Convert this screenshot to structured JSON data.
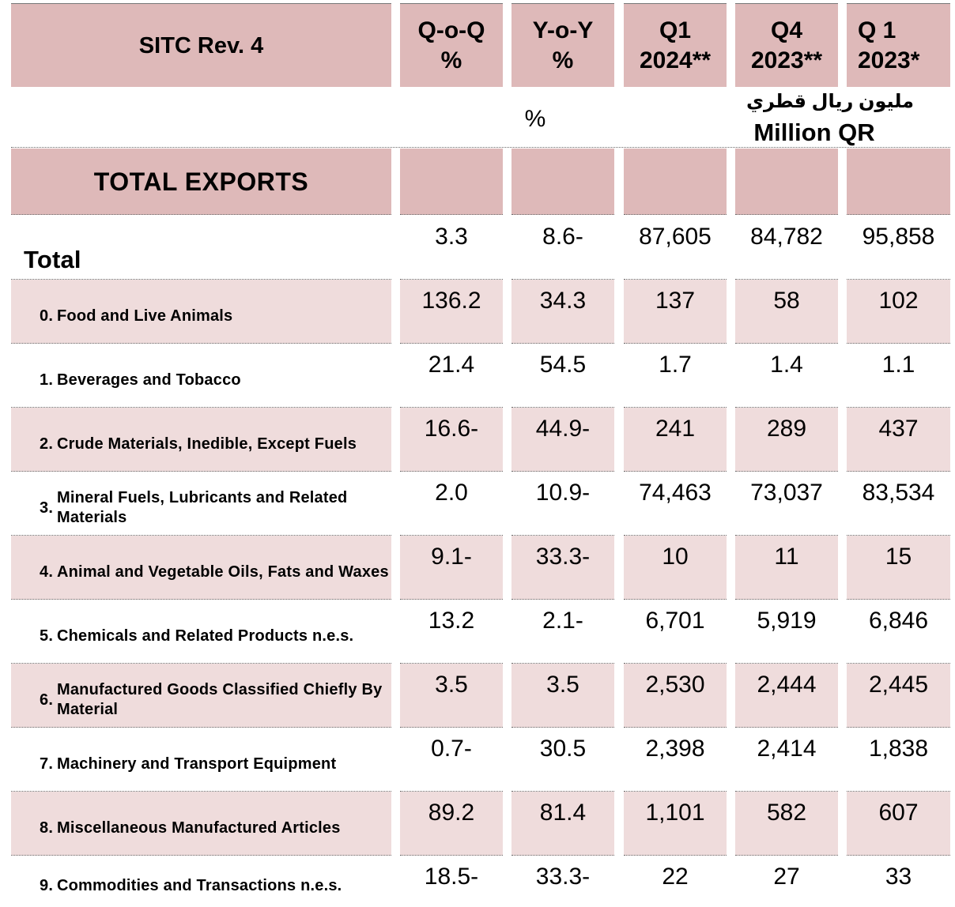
{
  "header": {
    "sitc": "SITC Rev. 4",
    "qoq": [
      "Q-o-Q",
      "%"
    ],
    "yoy": [
      "Y-o-Y",
      "%"
    ],
    "q1_2024": [
      "Q1",
      "2024**"
    ],
    "q4_2023": [
      "Q4",
      "2023**"
    ],
    "q1_2023": [
      "Q 1",
      "2023*"
    ]
  },
  "units": {
    "percent": "%",
    "arabic": "مليون ريال قطري",
    "english": "Million QR"
  },
  "section_title": "TOTAL EXPORTS",
  "rows": [
    {
      "num": "",
      "label": "Total",
      "qoq": "3.3",
      "yoy": "8.6-",
      "q1_2024": "87,605",
      "q4_2023": "84,782",
      "q1_2023": "95,858"
    },
    {
      "num": "0.",
      "label": "Food and Live Animals",
      "qoq": "136.2",
      "yoy": "34.3",
      "q1_2024": "137",
      "q4_2023": "58",
      "q1_2023": "102"
    },
    {
      "num": "1.",
      "label": "Beverages and Tobacco",
      "qoq": "21.4",
      "yoy": "54.5",
      "q1_2024": "1.7",
      "q4_2023": "1.4",
      "q1_2023": "1.1"
    },
    {
      "num": "2.",
      "label": "Crude Materials, Inedible, Except Fuels",
      "qoq": "16.6-",
      "yoy": "44.9-",
      "q1_2024": "241",
      "q4_2023": "289",
      "q1_2023": "437"
    },
    {
      "num": "3.",
      "label": "Mineral Fuels, Lubricants and Related Materials",
      "qoq": "2.0",
      "yoy": "10.9-",
      "q1_2024": "74,463",
      "q4_2023": "73,037",
      "q1_2023": "83,534"
    },
    {
      "num": "4.",
      "label": "Animal and Vegetable Oils, Fats and Waxes",
      "qoq": "9.1-",
      "yoy": "33.3-",
      "q1_2024": "10",
      "q4_2023": "11",
      "q1_2023": "15"
    },
    {
      "num": "5.",
      "label": "Chemicals and Related Products n.e.s.",
      "qoq": "13.2",
      "yoy": "2.1-",
      "q1_2024": "6,701",
      "q4_2023": "5,919",
      "q1_2023": "6,846"
    },
    {
      "num": "6.",
      "label": "Manufactured Goods Classified Chiefly By Material",
      "qoq": "3.5",
      "yoy": "3.5",
      "q1_2024": "2,530",
      "q4_2023": "2,444",
      "q1_2023": "2,445"
    },
    {
      "num": "7.",
      "label": "Machinery and Transport Equipment",
      "qoq": "0.7-",
      "yoy": "30.5",
      "q1_2024": "2,398",
      "q4_2023": "2,414",
      "q1_2023": "1,838"
    },
    {
      "num": "8.",
      "label": "Miscellaneous Manufactured Articles",
      "qoq": "89.2",
      "yoy": "81.4",
      "q1_2024": "1,101",
      "q4_2023": "582",
      "q1_2023": "607"
    },
    {
      "num": "9.",
      "label": "Commodities and Transactions n.e.s.",
      "qoq": "18.5-",
      "yoy": "33.3-",
      "q1_2024": "22",
      "q4_2023": "27",
      "q1_2023": "33"
    }
  ]
}
